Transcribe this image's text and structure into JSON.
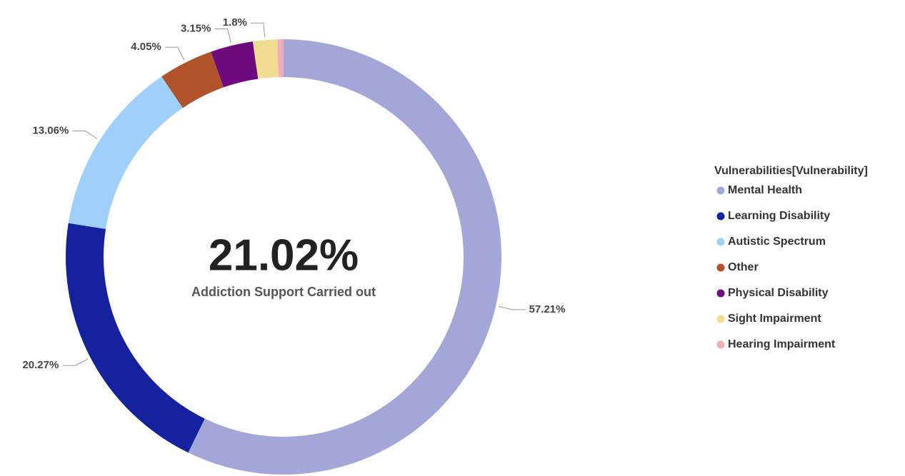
{
  "chart_data": {
    "type": "donut",
    "categories": [
      "Mental Health",
      "Learning Disability",
      "Autistic Spectrum",
      "Other",
      "Physical Disability",
      "Sight Impairment",
      "Hearing Impairment"
    ],
    "values": [
      57.21,
      20.27,
      13.06,
      4.05,
      3.15,
      1.8,
      0.46
    ],
    "value_labels": [
      "57.21%",
      "20.27%",
      "13.06%",
      "4.05%",
      "3.15%",
      "1.8%",
      null
    ],
    "colors": [
      "#a2a7d8",
      "#14229e",
      "#9ed0fb",
      "#b0522a",
      "#6e0a7e",
      "#f0dd92",
      "#eeafbb"
    ],
    "center_value": "21.02%",
    "center_label": "Addiction Support Carried out",
    "legend_title": "Vulnerabilities[Vulnerability]",
    "legend": "right"
  }
}
